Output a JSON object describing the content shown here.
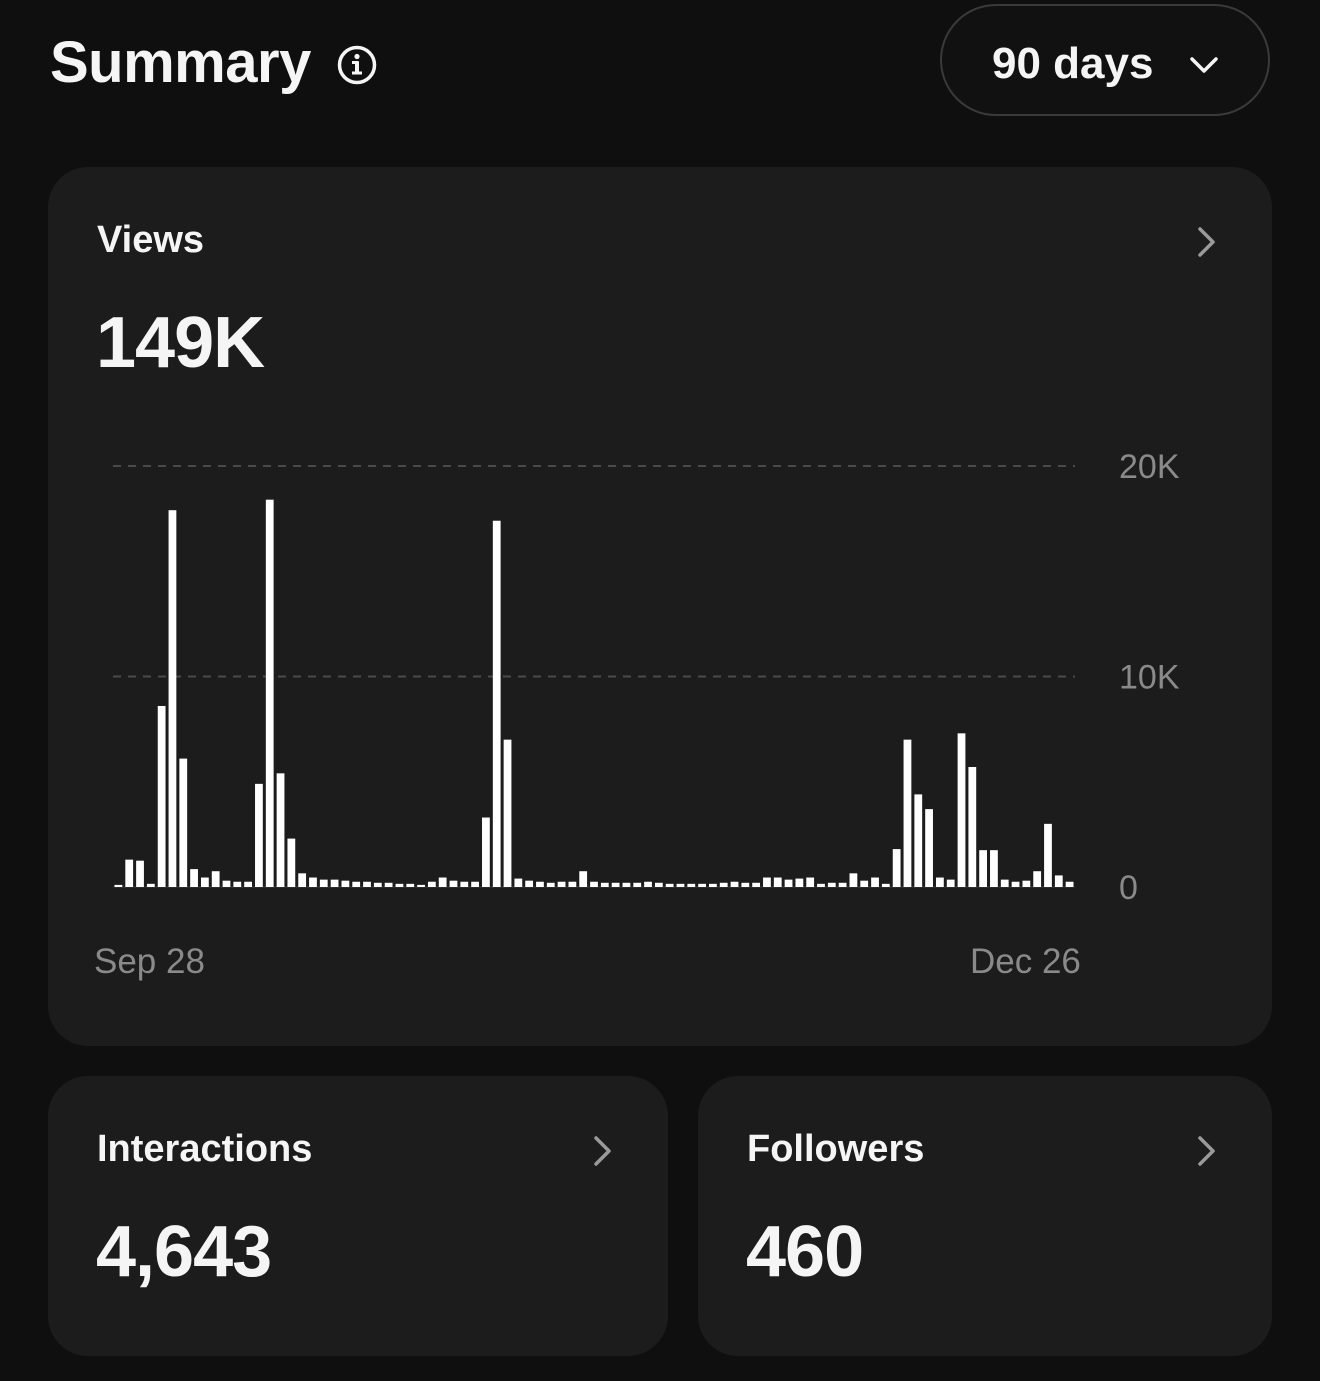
{
  "header": {
    "title": "Summary",
    "info_icon": "info-circle-icon",
    "range_label": "90 days",
    "range_icon": "chevron-down-icon"
  },
  "views": {
    "label": "Views",
    "value": "149K",
    "chevron_icon": "chevron-right-icon"
  },
  "interactions": {
    "label": "Interactions",
    "value": "4,643",
    "chevron_icon": "chevron-right-icon"
  },
  "followers": {
    "label": "Followers",
    "value": "460",
    "chevron_icon": "chevron-right-icon"
  },
  "colors": {
    "background": "#0f0f0f",
    "card": "#1c1c1c",
    "bar": "#ffffff",
    "muted_text": "#8a8a8a",
    "gridline": "#4a4a4a"
  },
  "chart_data": {
    "type": "bar",
    "x_start_label": "Sep 28",
    "x_end_label": "Dec 26",
    "y_ticks": [
      "0",
      "10K",
      "20K"
    ],
    "y_tick_values": [
      0,
      10000,
      20000
    ],
    "ylim": [
      0,
      20000
    ],
    "grid": true,
    "values": [
      100,
      1300,
      1250,
      150,
      8600,
      17900,
      6100,
      850,
      450,
      750,
      300,
      250,
      250,
      4900,
      18400,
      5400,
      2300,
      650,
      450,
      350,
      350,
      300,
      250,
      250,
      200,
      200,
      150,
      150,
      100,
      250,
      450,
      300,
      250,
      250,
      3300,
      17400,
      7000,
      400,
      300,
      250,
      200,
      250,
      250,
      750,
      250,
      200,
      200,
      200,
      200,
      250,
      200,
      150,
      150,
      150,
      150,
      150,
      200,
      250,
      200,
      200,
      450,
      450,
      350,
      400,
      450,
      150,
      200,
      200,
      650,
      300,
      450,
      150,
      1800,
      7000,
      4400,
      3700,
      450,
      350,
      7300,
      5700,
      1750,
      1750,
      350,
      250,
      300,
      750,
      3000,
      550,
      250
    ]
  }
}
